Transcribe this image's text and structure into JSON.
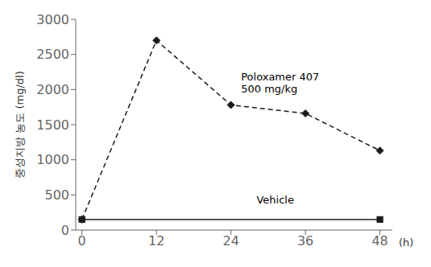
{
  "chart_data": {
    "type": "line",
    "xlabel": "(h)",
    "ylabel": "중성지방 농도 (mg/dl)",
    "series": [
      {
        "x": [
          0,
          12,
          24,
          36,
          48
        ],
        "values": [
          150,
          2700,
          1780,
          1660,
          1130
        ],
        "color": "#1a1a1a",
        "line_style": "dashed",
        "marker": "diamond"
      },
      {
        "x": [
          0,
          48
        ],
        "values": [
          150,
          150
        ],
        "color": "#1a1a1a",
        "line_style": "solid",
        "marker": "square"
      }
    ],
    "annotations": [
      {
        "text": "Poloxamer 407\n500 mg/kg",
        "x": 25.5,
        "y": 2100
      },
      {
        "text": "Vehicle",
        "x": 28,
        "y": 440
      }
    ],
    "xlim": [
      -1,
      50
    ],
    "ylim": [
      0,
      3000
    ],
    "xticks": [
      0,
      12,
      24,
      36,
      48
    ],
    "yticks": [
      0,
      500,
      1000,
      1500,
      2000,
      2500,
      3000
    ],
    "grid": false
  }
}
